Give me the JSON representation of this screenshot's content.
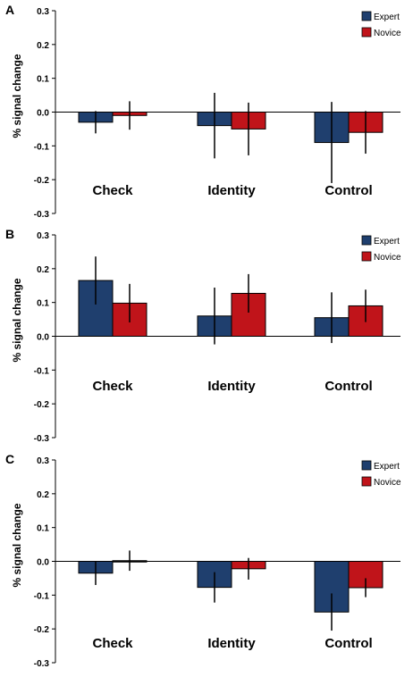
{
  "chart_data": [
    {
      "type": "bar",
      "panel_label": "A",
      "ylabel": "% signal change",
      "ylim": [
        -0.3,
        0.3
      ],
      "yticks": [
        "0.3",
        "0.2",
        "0.1",
        "0.0",
        "-0.1",
        "-0.2",
        "-0.3"
      ],
      "categories": [
        "Check",
        "Identity",
        "Control"
      ],
      "legend_position": "top-right",
      "series": [
        {
          "name": "Expert",
          "color": "#1f3f6e",
          "values": [
            -0.03,
            -0.04,
            -0.09
          ],
          "errors": [
            0.033,
            0.097,
            0.12
          ]
        },
        {
          "name": "Novice",
          "color": "#c0141a",
          "values": [
            -0.01,
            -0.05,
            -0.06
          ],
          "errors": [
            0.042,
            0.078,
            0.063
          ]
        }
      ]
    },
    {
      "type": "bar",
      "panel_label": "B",
      "ylabel": "% signal change",
      "ylim": [
        -0.3,
        0.3
      ],
      "yticks": [
        "0.3",
        "0.2",
        "0.1",
        "0.0",
        "-0.1",
        "-0.2",
        "-0.3"
      ],
      "categories": [
        "Check",
        "Identity",
        "Control"
      ],
      "legend_position": "top-right",
      "series": [
        {
          "name": "Expert",
          "color": "#1f3f6e",
          "values": [
            0.165,
            0.06,
            0.055
          ],
          "errors": [
            0.071,
            0.084,
            0.075
          ]
        },
        {
          "name": "Novice",
          "color": "#c0141a",
          "values": [
            0.098,
            0.127,
            0.09
          ],
          "errors": [
            0.057,
            0.057,
            0.048
          ]
        }
      ]
    },
    {
      "type": "bar",
      "panel_label": "C",
      "ylabel": "% signal change",
      "ylim": [
        -0.3,
        0.3
      ],
      "yticks": [
        "0.3",
        "0.2",
        "0.1",
        "0.0",
        "-0.1",
        "-0.2",
        "-0.3"
      ],
      "categories": [
        "Check",
        "Identity",
        "Control"
      ],
      "legend_position": "top-right",
      "series": [
        {
          "name": "Expert",
          "color": "#1f3f6e",
          "values": [
            -0.035,
            -0.077,
            -0.15
          ],
          "errors": [
            0.035,
            0.045,
            0.055
          ]
        },
        {
          "name": "Novice",
          "color": "#c0141a",
          "values": [
            0.002,
            -0.022,
            -0.078
          ],
          "errors": [
            0.03,
            0.032,
            0.028
          ]
        }
      ]
    }
  ]
}
